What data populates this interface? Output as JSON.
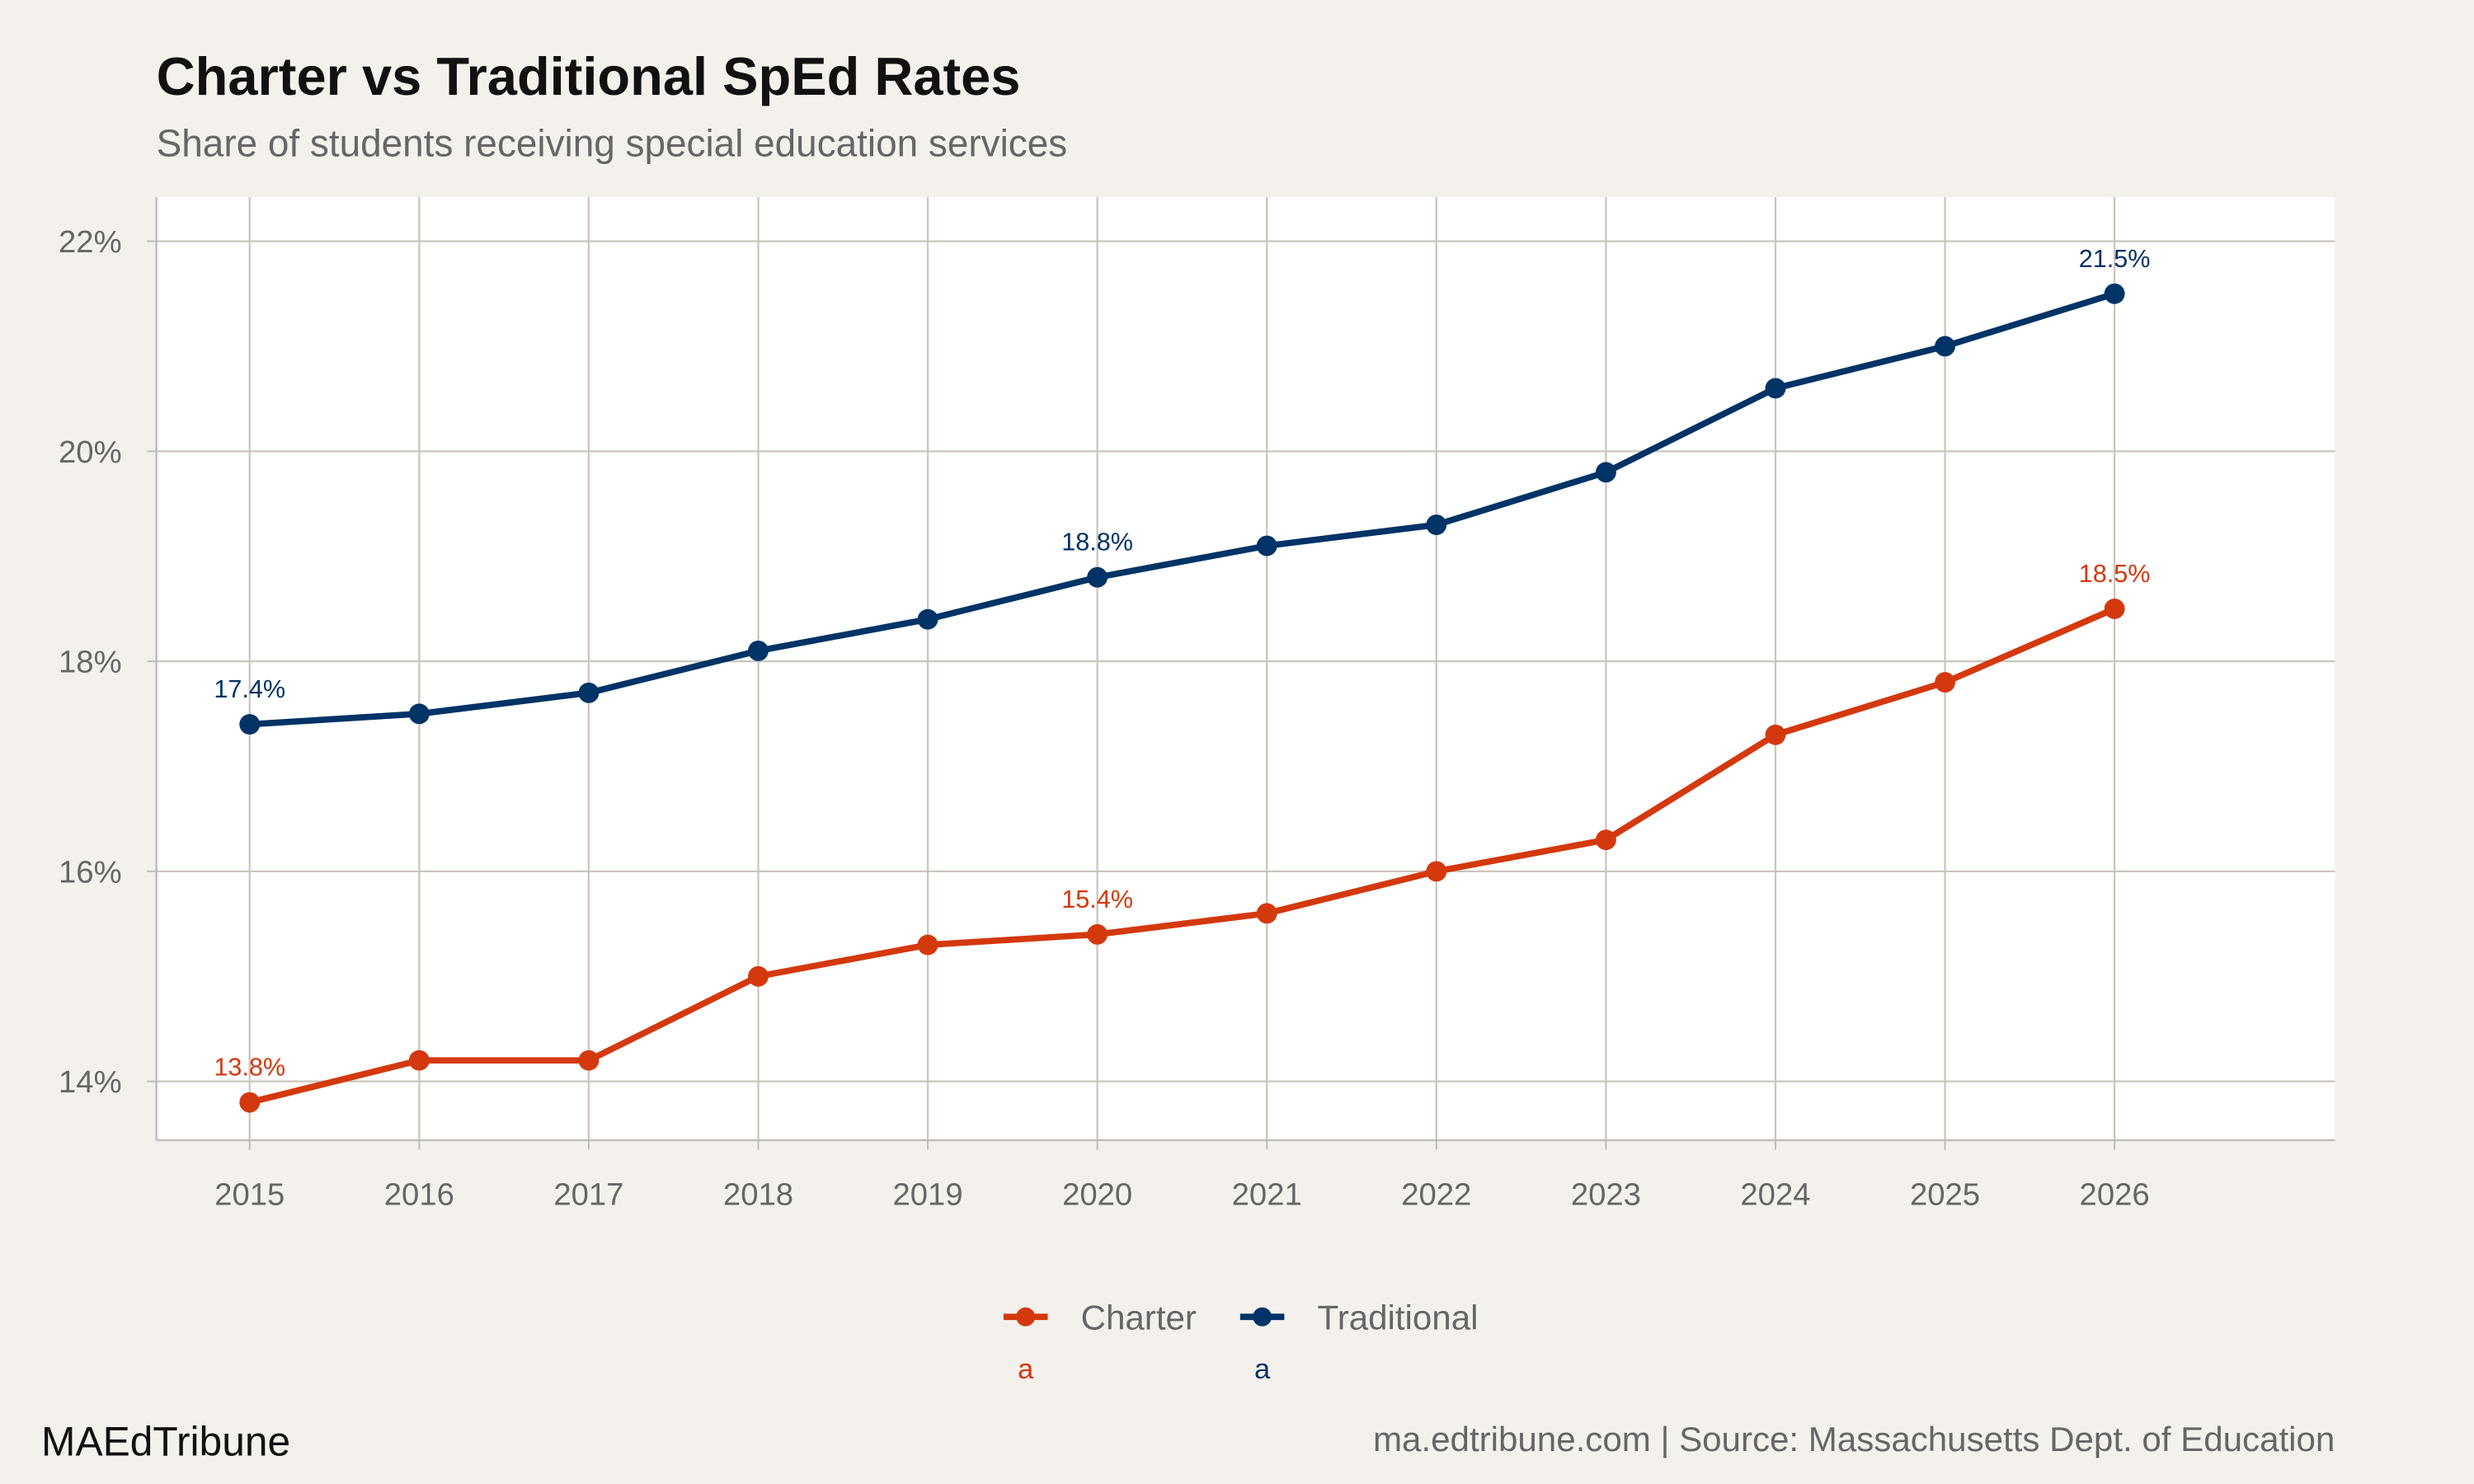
{
  "chart_data": {
    "type": "line",
    "title": "Charter vs Traditional SpEd Rates",
    "subtitle": "Share of students receiving special education services",
    "xlabel": "",
    "ylabel": "",
    "x": [
      2015,
      2016,
      2017,
      2018,
      2019,
      2020,
      2021,
      2022,
      2023,
      2024,
      2025,
      2026
    ],
    "x_tick_labels": [
      "2015",
      "2016",
      "2017",
      "2018",
      "2019",
      "2020",
      "2021",
      "2022",
      "2023",
      "2024",
      "2025",
      "2026"
    ],
    "y_ticks": [
      14,
      16,
      18,
      20,
      22
    ],
    "y_tick_labels": [
      "14%",
      "16%",
      "18%",
      "20%",
      "22%"
    ],
    "ylim": [
      13.44,
      22.42
    ],
    "xlim": [
      2014.45,
      2027.3
    ],
    "grid": true,
    "legend_position": "bottom",
    "series": [
      {
        "name": "Charter",
        "color": "#d4390e",
        "values": [
          13.8,
          14.2,
          14.2,
          15.0,
          15.3,
          15.4,
          15.6,
          16.0,
          16.3,
          17.3,
          17.8,
          18.5
        ],
        "labels": [
          {
            "x": 2015,
            "text": "13.8%"
          },
          {
            "x": 2020,
            "text": "15.4%"
          },
          {
            "x": 2026,
            "text": "18.5%"
          }
        ]
      },
      {
        "name": "Traditional",
        "color": "#003366",
        "values": [
          17.4,
          17.5,
          17.7,
          18.1,
          18.4,
          18.8,
          19.1,
          19.3,
          19.8,
          20.6,
          21.0,
          21.5
        ],
        "labels": [
          {
            "x": 2015,
            "text": "17.4%"
          },
          {
            "x": 2020,
            "text": "18.8%"
          },
          {
            "x": 2026,
            "text": "21.5%"
          }
        ]
      }
    ],
    "legend_key_text": "a"
  },
  "footer": {
    "brand": "MAEdTribune",
    "source": "ma.edtribune.com | Source: Massachusetts Dept. of Education"
  }
}
